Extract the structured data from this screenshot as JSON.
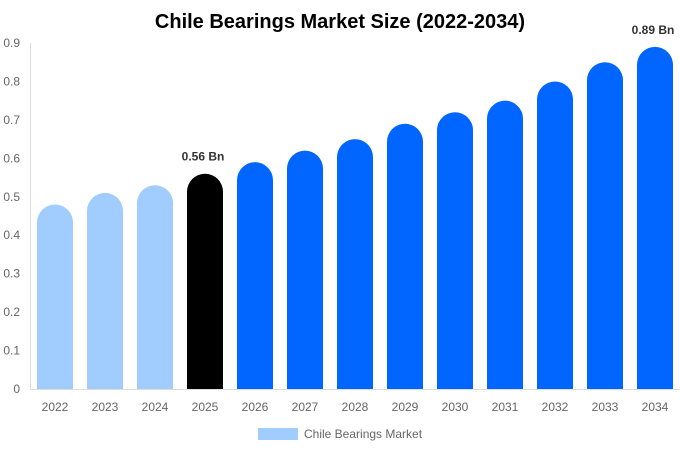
{
  "chart_data": {
    "type": "bar",
    "title": "Chile Bearings Market Size (2022-2034)",
    "xlabel": "",
    "ylabel": "",
    "categories": [
      "2022",
      "2023",
      "2024",
      "2025",
      "2026",
      "2027",
      "2028",
      "2029",
      "2030",
      "2031",
      "2032",
      "2033",
      "2034"
    ],
    "series": [
      {
        "name": "Chile Bearings Market",
        "values": [
          0.48,
          0.51,
          0.53,
          0.56,
          0.59,
          0.62,
          0.65,
          0.69,
          0.72,
          0.75,
          0.8,
          0.85,
          0.89
        ]
      }
    ],
    "ylim": [
      0,
      0.9
    ],
    "yticks": [
      "0",
      "0.1",
      "0.2",
      "0.3",
      "0.4",
      "0.5",
      "0.6",
      "0.7",
      "0.8",
      "0.9"
    ],
    "data_labels": {
      "3": "0.56 Bn",
      "12": "0.89 Bn"
    },
    "grid": false,
    "legend_position": "bottom",
    "colors": {
      "historical": "#a0cdfd",
      "current": "#000000",
      "forecast": "#0066ff"
    }
  }
}
